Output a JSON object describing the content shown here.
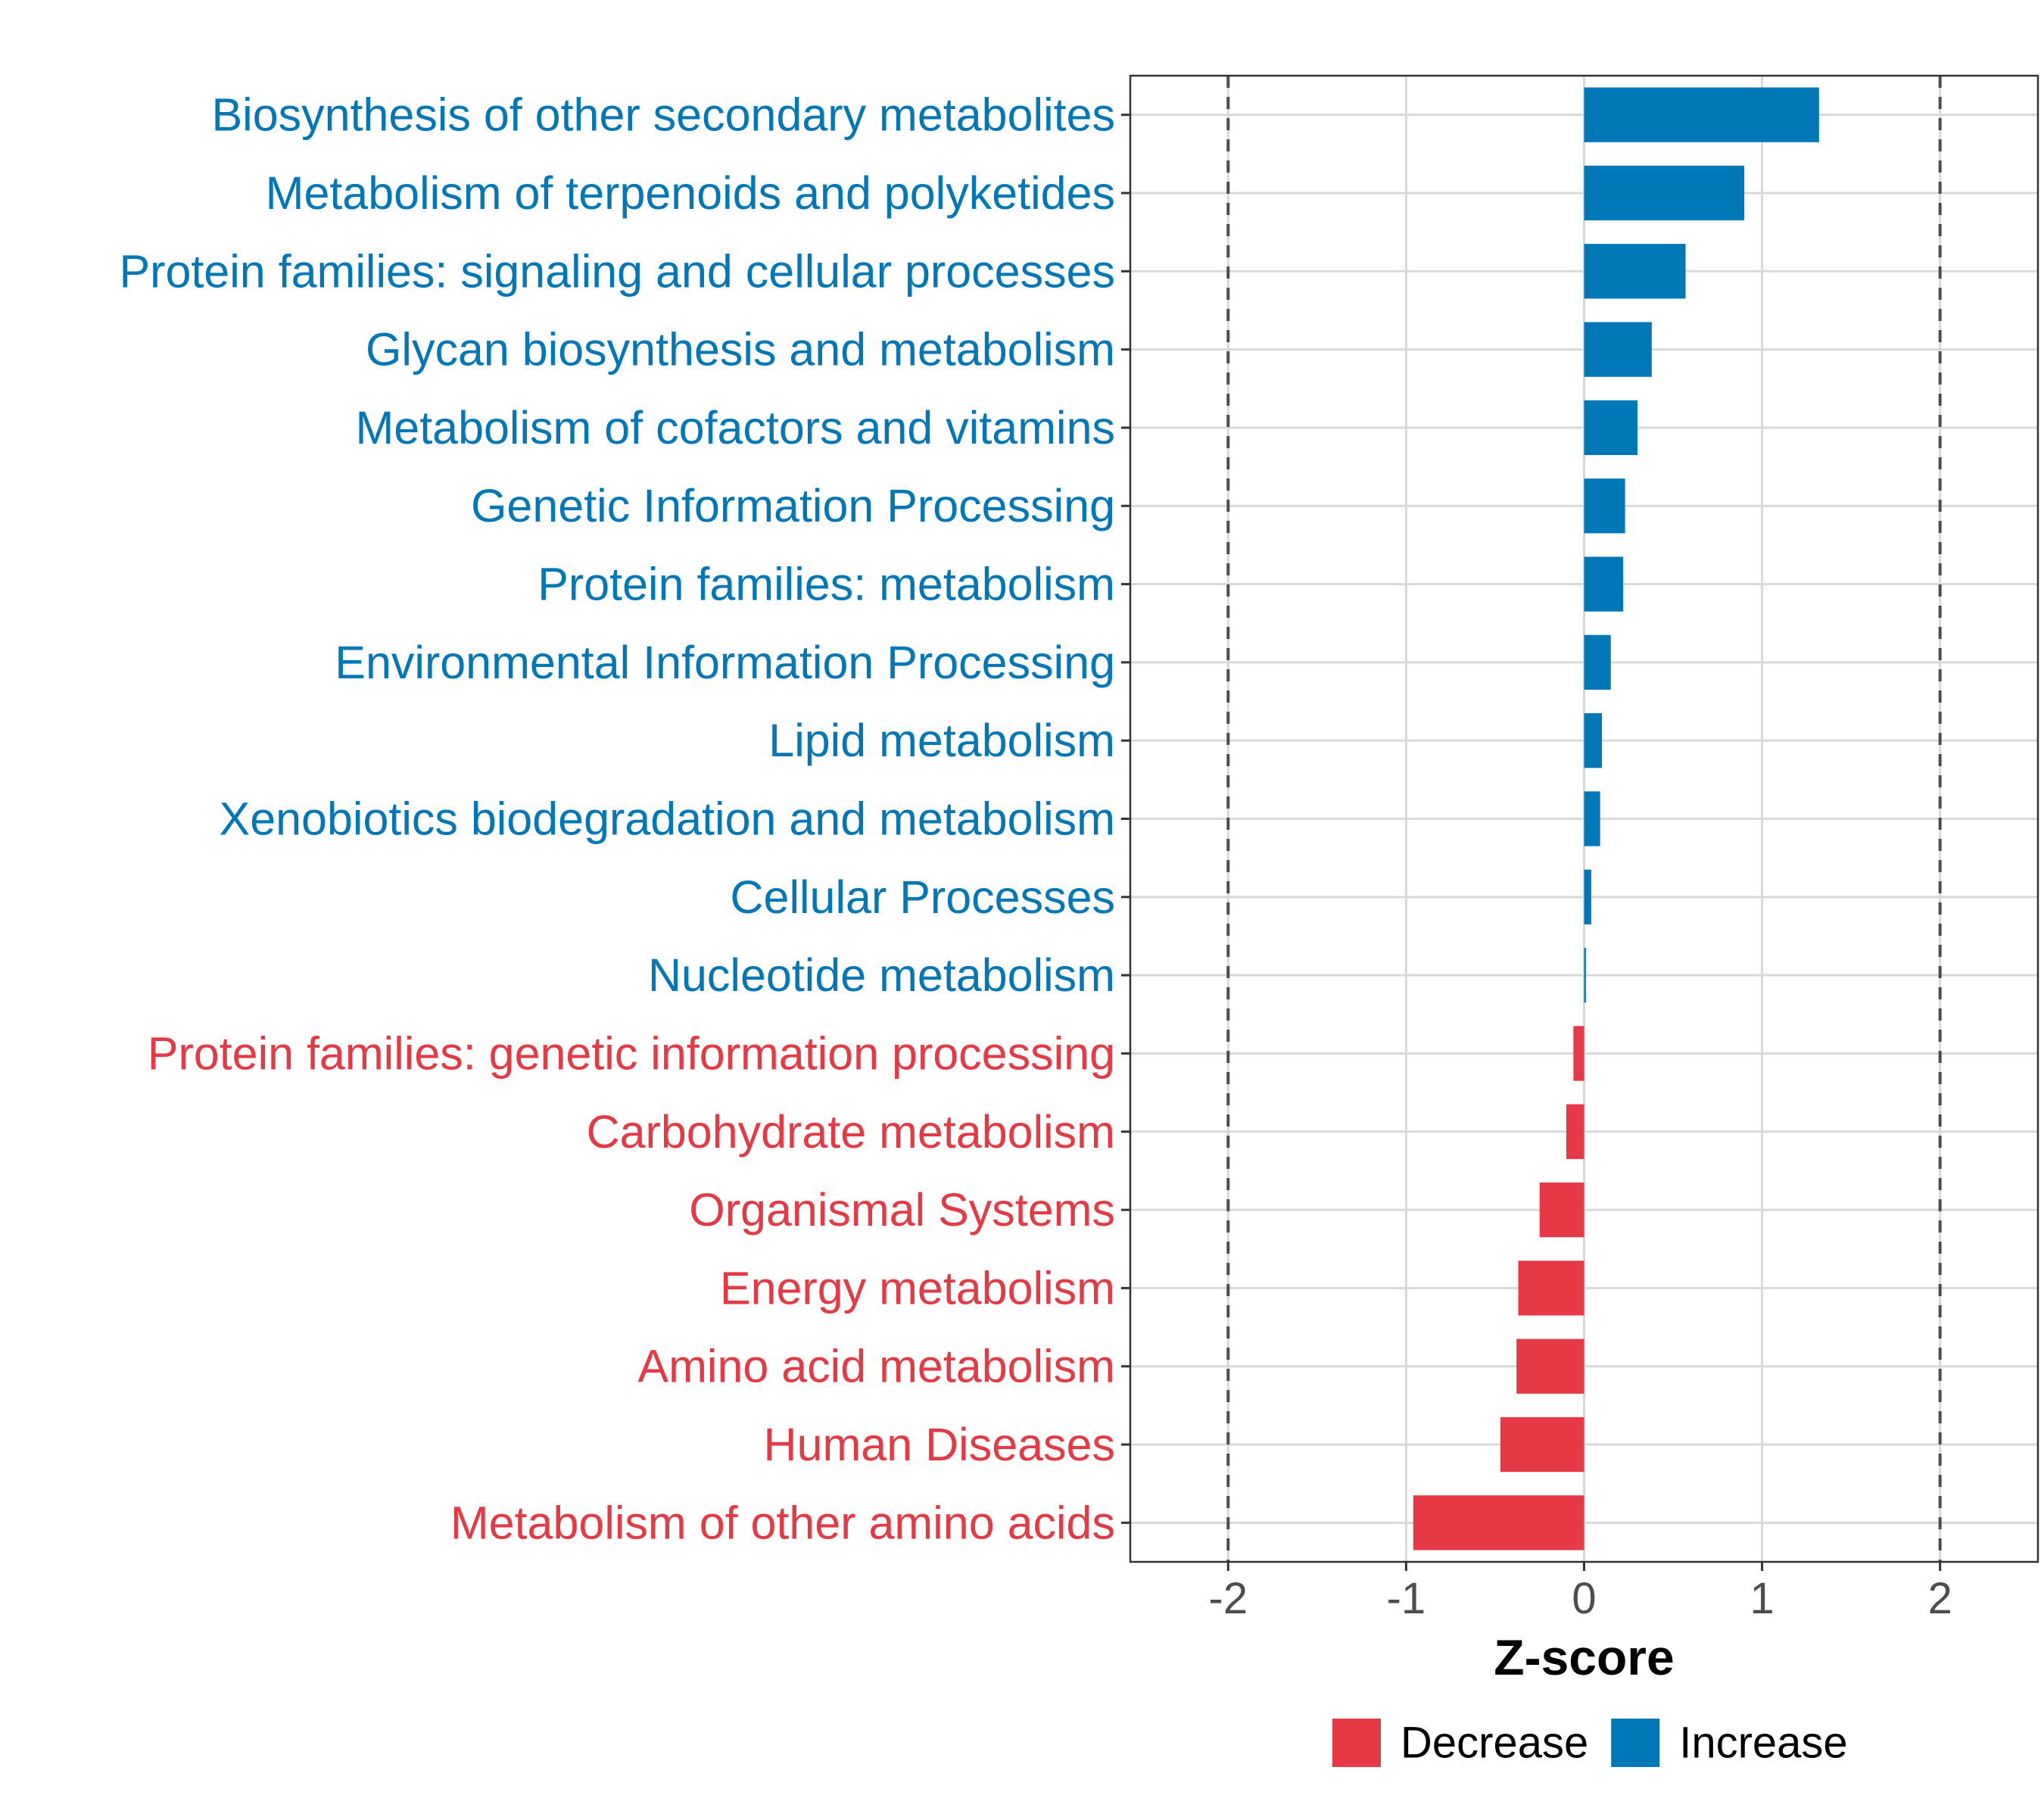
{
  "chart_data": {
    "type": "bar",
    "orientation": "horizontal",
    "categories": [
      "Biosynthesis of other secondary metabolites",
      "Metabolism of terpenoids and polyketides",
      "Protein families: signaling and cellular processes",
      "Glycan biosynthesis and metabolism",
      "Metabolism of cofactors and vitamins",
      "Genetic Information Processing",
      "Protein families: metabolism",
      "Environmental Information Processing",
      "Lipid metabolism",
      "Xenobiotics biodegradation and metabolism",
      "Cellular Processes",
      "Nucleotide metabolism",
      "Protein families: genetic information processing",
      "Carbohydrate metabolism",
      "Organismal Systems",
      "Energy metabolism",
      "Amino acid metabolism",
      "Human Diseases",
      "Metabolism of other amino acids"
    ],
    "values": [
      1.32,
      0.9,
      0.57,
      0.38,
      0.3,
      0.23,
      0.22,
      0.15,
      0.1,
      0.09,
      0.04,
      0.01,
      -0.06,
      -0.1,
      -0.25,
      -0.37,
      -0.38,
      -0.47,
      -0.96
    ],
    "groups": [
      "Increase",
      "Increase",
      "Increase",
      "Increase",
      "Increase",
      "Increase",
      "Increase",
      "Increase",
      "Increase",
      "Increase",
      "Increase",
      "Increase",
      "Decrease",
      "Decrease",
      "Decrease",
      "Decrease",
      "Decrease",
      "Decrease",
      "Decrease"
    ],
    "colors": {
      "Increase": "#0077b6",
      "Decrease": "#e63946"
    },
    "xlabel": "Z-score",
    "xlim": [
      -2.55,
      2.55
    ],
    "xticks": [
      -2,
      -1,
      0,
      1,
      2
    ],
    "xtick_labels": [
      "-2",
      "-1",
      "0",
      "1",
      "2"
    ],
    "reference_lines": [
      -2,
      2
    ],
    "legend": {
      "position": "bottom",
      "entries": [
        {
          "label": "Decrease",
          "color": "#e63946"
        },
        {
          "label": "Increase",
          "color": "#0077b6"
        }
      ]
    },
    "grid": true
  }
}
